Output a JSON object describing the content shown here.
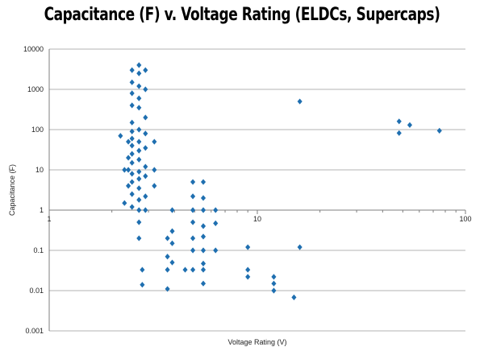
{
  "chart_data": {
    "type": "scatter",
    "title": "Capacitance (F) v. Voltage Rating (ELDCs, Supercaps)",
    "xlabel": "Voltage Rating (V)",
    "ylabel": "Capacitance (F)",
    "x_scale": "log",
    "y_scale": "log",
    "xlim": [
      1,
      100
    ],
    "ylim": [
      0.001,
      10000
    ],
    "x_ticks": [
      "1",
      "10",
      "100"
    ],
    "y_ticks": [
      "10000",
      "1000",
      "100",
      "10",
      "1",
      "0.1",
      "0.01",
      "0.001"
    ],
    "grid": "horizontal",
    "legend": "none",
    "marker": "diamond",
    "color": "#1f6fb0",
    "series": [
      {
        "points": [
          [
            2.2,
            70
          ],
          [
            2.3,
            10
          ],
          [
            2.3,
            1.5
          ],
          [
            2.4,
            50
          ],
          [
            2.4,
            20
          ],
          [
            2.4,
            10
          ],
          [
            2.4,
            4
          ],
          [
            2.5,
            3000
          ],
          [
            2.5,
            1500
          ],
          [
            2.5,
            800
          ],
          [
            2.5,
            400
          ],
          [
            2.5,
            150
          ],
          [
            2.5,
            90
          ],
          [
            2.5,
            60
          ],
          [
            2.5,
            40
          ],
          [
            2.5,
            25
          ],
          [
            2.5,
            15
          ],
          [
            2.5,
            8
          ],
          [
            2.5,
            5
          ],
          [
            2.5,
            2.5
          ],
          [
            2.5,
            1.2
          ],
          [
            2.7,
            4000
          ],
          [
            2.7,
            2500
          ],
          [
            2.7,
            1200
          ],
          [
            2.7,
            600
          ],
          [
            2.7,
            350
          ],
          [
            2.7,
            100
          ],
          [
            2.7,
            50
          ],
          [
            2.7,
            30
          ],
          [
            2.7,
            18
          ],
          [
            2.7,
            9
          ],
          [
            2.7,
            6
          ],
          [
            2.7,
            3.5
          ],
          [
            2.7,
            1.8
          ],
          [
            2.7,
            1
          ],
          [
            2.7,
            0.5
          ],
          [
            2.7,
            0.2
          ],
          [
            2.8,
            0.033
          ],
          [
            2.8,
            0.014
          ],
          [
            2.9,
            3000
          ],
          [
            2.9,
            1000
          ],
          [
            2.9,
            200
          ],
          [
            2.9,
            80
          ],
          [
            2.9,
            35
          ],
          [
            2.9,
            12
          ],
          [
            2.9,
            7
          ],
          [
            2.9,
            2.2
          ],
          [
            2.9,
            1
          ],
          [
            3.2,
            50
          ],
          [
            3.2,
            10
          ],
          [
            3.2,
            4
          ],
          [
            3.7,
            0.2
          ],
          [
            3.7,
            0.07
          ],
          [
            3.7,
            0.033
          ],
          [
            3.7,
            0.011
          ],
          [
            3.9,
            1
          ],
          [
            3.9,
            0.3
          ],
          [
            3.9,
            0.15
          ],
          [
            3.9,
            0.05
          ],
          [
            4.5,
            0.033
          ],
          [
            4.9,
            5
          ],
          [
            4.9,
            2.2
          ],
          [
            4.9,
            1
          ],
          [
            4.9,
            0.5
          ],
          [
            4.9,
            0.2
          ],
          [
            4.9,
            0.1
          ],
          [
            4.9,
            0.033
          ],
          [
            5.5,
            5
          ],
          [
            5.5,
            2
          ],
          [
            5.5,
            1
          ],
          [
            5.5,
            0.4
          ],
          [
            5.5,
            0.22
          ],
          [
            5.5,
            0.1
          ],
          [
            5.5,
            0.047
          ],
          [
            5.5,
            0.033
          ],
          [
            5.5,
            0.015
          ],
          [
            6.3,
            1
          ],
          [
            6.3,
            0.47
          ],
          [
            6.3,
            0.1
          ],
          [
            9,
            0.12
          ],
          [
            9,
            0.033
          ],
          [
            9,
            0.022
          ],
          [
            12,
            0.022
          ],
          [
            12,
            0.015
          ],
          [
            12,
            0.01
          ],
          [
            15,
            0.0068
          ],
          [
            16,
            500
          ],
          [
            16,
            0.12
          ],
          [
            48,
            160
          ],
          [
            48,
            82
          ],
          [
            54,
            130
          ],
          [
            75,
            94
          ]
        ]
      }
    ]
  }
}
